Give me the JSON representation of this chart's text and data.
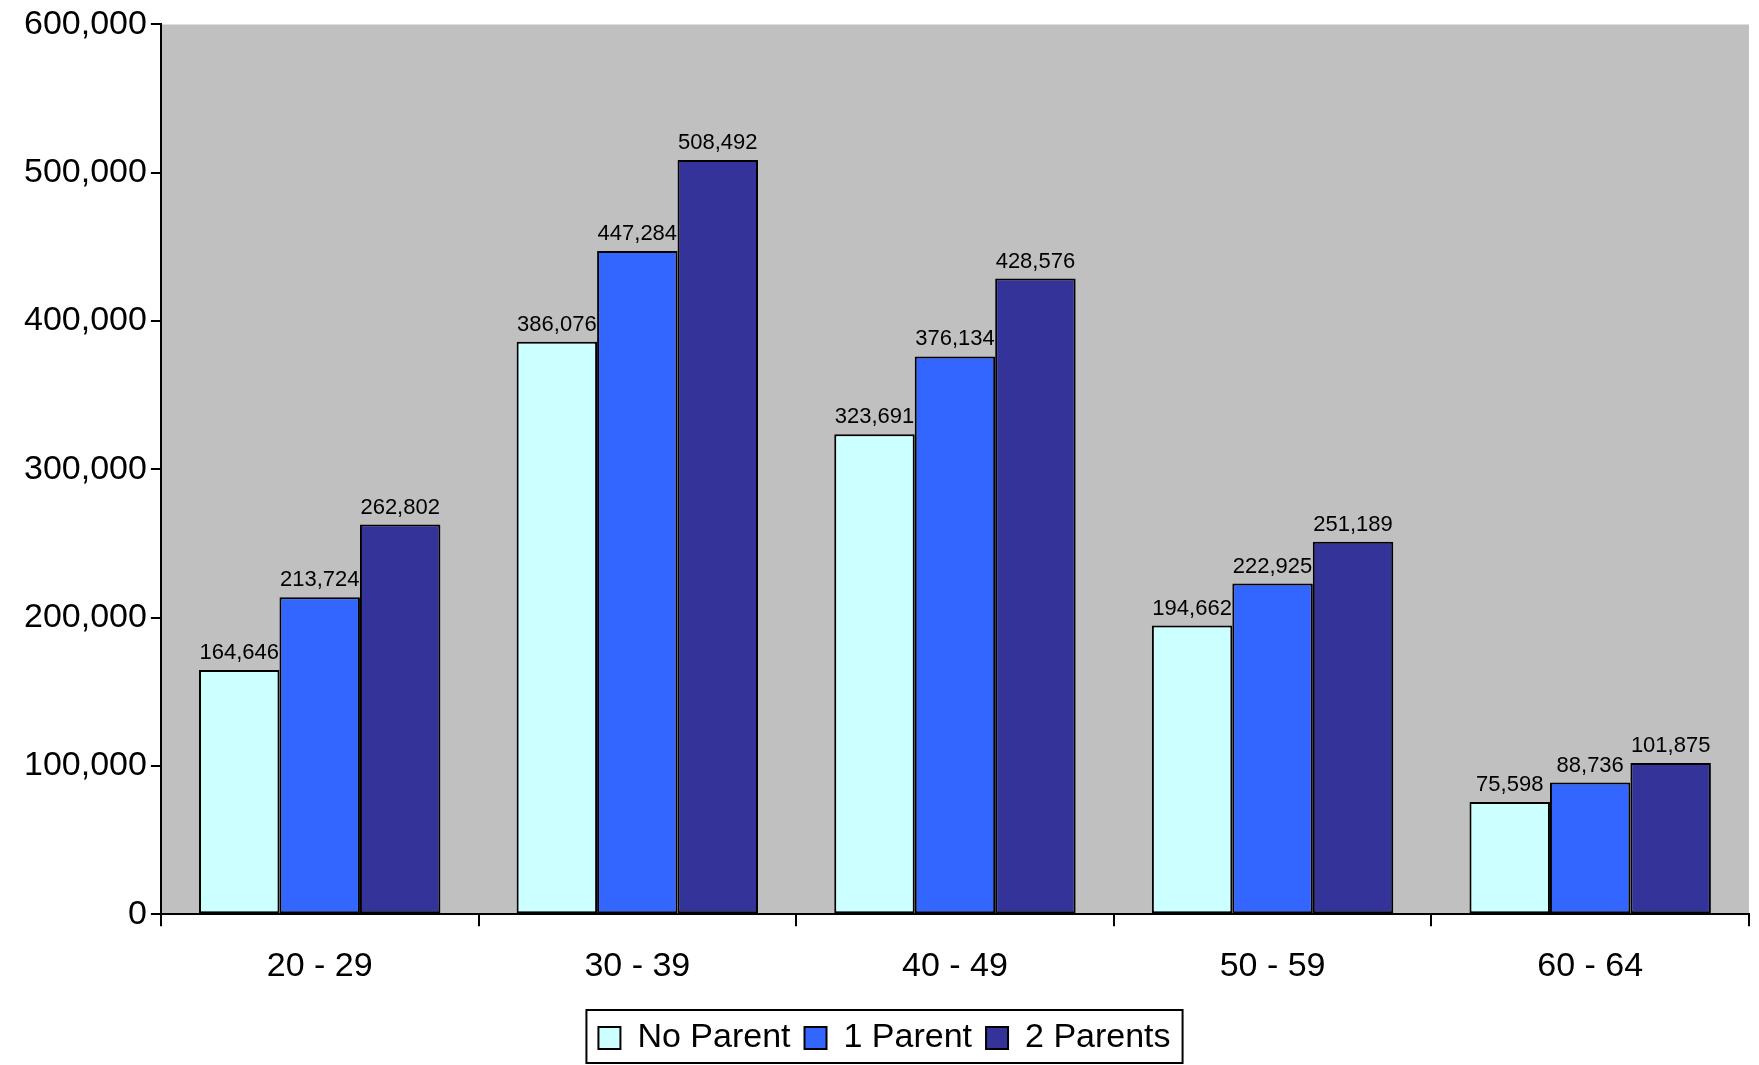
{
  "chart_data": {
    "type": "bar",
    "categories": [
      "20 - 29",
      "30 - 39",
      "40 - 49",
      "50 - 59",
      "60 - 64"
    ],
    "series": [
      {
        "name": "No Parent",
        "color": "#ccffff",
        "values": [
          164646,
          386076,
          323691,
          194662,
          75598
        ],
        "value_labels": [
          "164,646",
          "386,076",
          "323,691",
          "194,662",
          "75,598"
        ]
      },
      {
        "name": "1 Parent",
        "color": "#3366ff",
        "values": [
          213724,
          447284,
          376134,
          222925,
          88736
        ],
        "value_labels": [
          "213,724",
          "447,284",
          "376,134",
          "222,925",
          "88,736"
        ]
      },
      {
        "name": "2 Parents",
        "color": "#333399",
        "values": [
          262802,
          508492,
          428576,
          251189,
          101875
        ],
        "value_labels": [
          "262,802",
          "508,492",
          "428,576",
          "251,189",
          "101,875"
        ]
      }
    ],
    "ylim": [
      0,
      600000
    ],
    "yticks": [
      {
        "value": 0,
        "label": "0"
      },
      {
        "value": 100000,
        "label": "100,000"
      },
      {
        "value": 200000,
        "label": "200,000"
      },
      {
        "value": 300000,
        "label": "300,000"
      },
      {
        "value": 400000,
        "label": "400,000"
      },
      {
        "value": 500000,
        "label": "500,000"
      },
      {
        "value": 600000,
        "label": "600,000"
      }
    ],
    "grid": false,
    "legend": "bottom"
  }
}
